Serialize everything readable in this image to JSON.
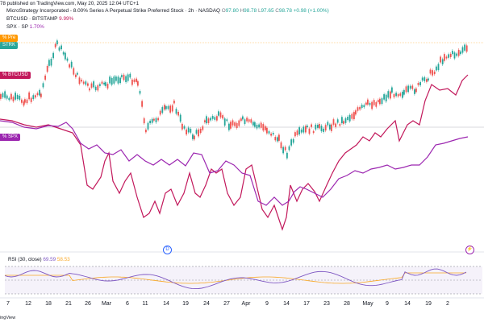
{
  "header": {
    "id_fragment": "78",
    "published": "published on TradingView.com, May 20, 2025 12:04 UTC+1"
  },
  "legend": {
    "main_title": "MicroStrategy Incorporated - 8.00% Series A Perpetual Strike Preferred Stock · 2h · NASDAQ",
    "main_o": "97.80",
    "main_h": "98.78",
    "main_l": "97.65",
    "main_c": "98.78",
    "main_change": "+0.98 (+1.00%)",
    "btc_title": "BTCUSD · BITSTAMP",
    "btc_change": "9.99%",
    "spx_title": "SPX · SP",
    "spx_change": "1.70%"
  },
  "price_tags": {
    "pre": "Pre",
    "strk": "STRK",
    "btc": "BTCUSD",
    "spx": "SPX",
    "pct_fragment": "%"
  },
  "events": {
    "dividend": "D",
    "earnings": "⚡"
  },
  "rsi": {
    "title": "RSI (30, close)",
    "value1": "69.59",
    "value2": "58.53"
  },
  "xaxis": [
    "7",
    "12",
    "18",
    "21",
    "26",
    "Mar",
    "6",
    "11",
    "14",
    "19",
    "24",
    "27",
    "Apr",
    "9",
    "14",
    "17",
    "23",
    "28",
    "May",
    "9",
    "14",
    "19",
    "2"
  ],
  "footer": "ingView",
  "colors": {
    "candle_up": "#26a69a",
    "candle_down": "#ef5350",
    "btc_line": "#c2185b",
    "spx_line": "#9c27b0",
    "rsi_line": "#7e57c2",
    "rsi_ma": "#f9a825",
    "pre_tag": "#ff9800"
  }
}
